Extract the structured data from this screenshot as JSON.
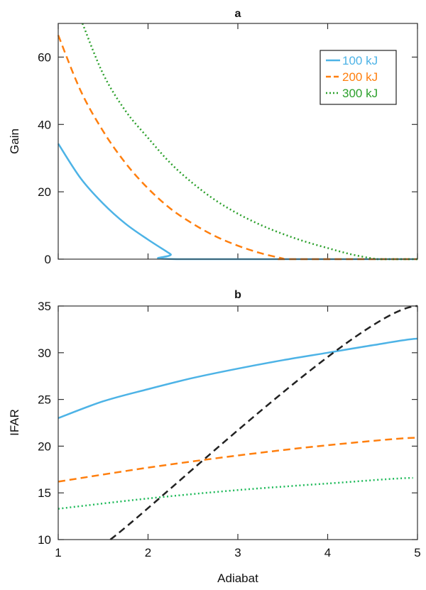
{
  "chart_data": [
    {
      "type": "line",
      "title": "a",
      "xlabel": "",
      "ylabel": "Gain",
      "xlim": [
        1,
        5
      ],
      "ylim": [
        0,
        70
      ],
      "xticks": [
        1,
        2,
        3,
        4,
        5
      ],
      "yticks": [
        0,
        20,
        40,
        60
      ],
      "ytick_labels": [
        "0",
        "20",
        "40",
        "60"
      ],
      "legend_position": "top-right",
      "grid": false,
      "series": [
        {
          "name": "100 kJ",
          "color": "#4db3e6",
          "style": "solid",
          "x": [
            1,
            1.25,
            1.5,
            1.75,
            2,
            2.25,
            2.32,
            5
          ],
          "y": [
            34.3,
            24,
            16.5,
            10.5,
            5.8,
            1.5,
            0,
            0
          ]
        },
        {
          "name": "200 kJ",
          "color": "#ff7f0e",
          "style": "dashed",
          "x": [
            1,
            1.25,
            1.5,
            1.75,
            2,
            2.25,
            2.5,
            2.75,
            3,
            3.25,
            3.5,
            3.55,
            5
          ],
          "y": [
            66.5,
            50,
            38,
            28.5,
            21,
            15,
            10.5,
            6.8,
            4,
            1.8,
            0.2,
            0,
            0
          ]
        },
        {
          "name": "300 kJ",
          "color": "#2ca02c",
          "style": "dotted",
          "x": [
            1.27,
            1.5,
            1.75,
            2,
            2.25,
            2.5,
            2.75,
            3,
            3.25,
            3.5,
            3.75,
            4,
            4.25,
            4.5,
            4.6,
            5
          ],
          "y": [
            70,
            55,
            44,
            36,
            28.5,
            22.5,
            17.5,
            13.5,
            10.2,
            7.5,
            5.2,
            3.3,
            1.5,
            0.2,
            0,
            0
          ]
        }
      ]
    },
    {
      "type": "line",
      "title": "b",
      "xlabel": "Adiabat",
      "ylabel": "IFAR",
      "xlim": [
        1,
        5
      ],
      "ylim": [
        10,
        35
      ],
      "xticks": [
        1,
        2,
        3,
        4,
        5
      ],
      "xtick_labels": [
        "1",
        "2",
        "3",
        "4",
        "5"
      ],
      "yticks": [
        10,
        15,
        20,
        25,
        30,
        35
      ],
      "ytick_labels": [
        "10",
        "15",
        "20",
        "25",
        "30",
        "35"
      ],
      "grid": false,
      "series": [
        {
          "color": "#4db3e6",
          "style": "solid",
          "x": [
            1,
            1.5,
            2,
            2.5,
            3,
            3.5,
            4,
            4.5,
            5
          ],
          "y": [
            23,
            24.8,
            26.1,
            27.3,
            28.3,
            29.2,
            30.0,
            30.8,
            31.5
          ]
        },
        {
          "color": "#ff7f0e",
          "style": "dashed",
          "x": [
            1,
            2,
            3,
            4,
            5
          ],
          "y": [
            16.2,
            17.7,
            19.0,
            20.1,
            20.9
          ]
        },
        {
          "color": "#1fba5a",
          "style": "dotted",
          "x": [
            1,
            2,
            3,
            4,
            4.95
          ],
          "y": [
            13.3,
            14.4,
            15.3,
            16.0,
            16.6
          ]
        },
        {
          "color": "#222222",
          "style": "dashed",
          "x": [
            1.58,
            5
          ],
          "y": [
            10,
            35
          ]
        }
      ]
    }
  ]
}
